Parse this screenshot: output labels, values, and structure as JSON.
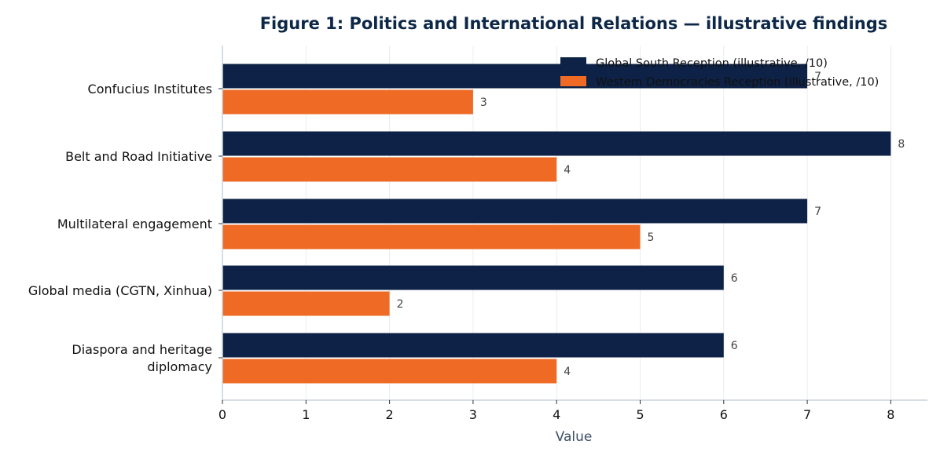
{
  "chart_data": {
    "type": "bar",
    "orientation": "horizontal",
    "title": "Figure 1: Politics and International Relations — illustrative findings",
    "xlabel": "Value",
    "ylabel": "",
    "xlim": [
      0,
      8.4
    ],
    "xticks": [
      "0",
      "1",
      "2",
      "3",
      "4",
      "5",
      "6",
      "7",
      "8"
    ],
    "categories": [
      "Confucius Institutes",
      "Belt and Road Initiative",
      "Multilateral engagement",
      "Global media (CGTN, Xinhua)",
      "Diaspora and heritage diplomacy"
    ],
    "category_lines": [
      [
        "Confucius Institutes"
      ],
      [
        "Belt and Road Initiative"
      ],
      [
        "Multilateral engagement"
      ],
      [
        "Global media (CGTN, Xinhua)"
      ],
      [
        "Diaspora and heritage",
        "diplomacy"
      ]
    ],
    "series": [
      {
        "name": "Global South Reception (illustrative, /10)",
        "values": [
          7,
          8,
          7,
          6,
          6
        ],
        "color": "#0d2246"
      },
      {
        "name": "Western Democracies Reception (illustrative, /10)",
        "values": [
          3,
          4,
          5,
          2,
          4
        ],
        "color": "#ee6a25"
      }
    ],
    "grid": "vertical",
    "legend_position": "top-right",
    "data_labels": true
  }
}
